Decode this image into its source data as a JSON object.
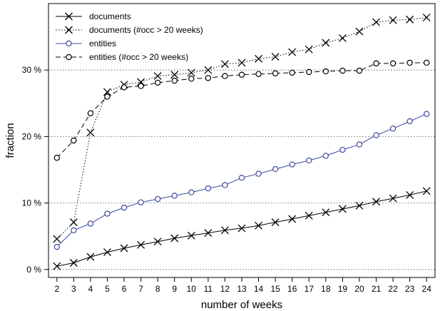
{
  "chart_data": {
    "type": "line",
    "xlabel": "number of weeks",
    "ylabel": "fraction",
    "x": [
      2,
      3,
      4,
      5,
      6,
      7,
      8,
      9,
      10,
      11,
      12,
      13,
      14,
      15,
      16,
      17,
      18,
      19,
      20,
      21,
      22,
      23,
      24
    ],
    "xlim": [
      1.5,
      24.5
    ],
    "ylim": [
      -1.2,
      40
    ],
    "yticks": [
      0,
      10,
      20,
      30
    ],
    "yticklabels": [
      "0 %",
      "10 %",
      "20 %",
      "30 %"
    ],
    "grid": "horizontal dotted at y ticks",
    "legend_position": "top-left",
    "series": [
      {
        "name": "documents",
        "marker": "x",
        "line": "solid",
        "color": "#000000",
        "values": [
          0.5,
          1.0,
          1.9,
          2.6,
          3.2,
          3.7,
          4.2,
          4.7,
          5.1,
          5.5,
          5.9,
          6.2,
          6.6,
          7.1,
          7.6,
          8.1,
          8.6,
          9.1,
          9.6,
          10.2,
          10.7,
          11.2,
          11.8
        ]
      },
      {
        "name": "documents (#occ > 20 weeks)",
        "marker": "x",
        "line": "dotted",
        "color": "#000000",
        "values": [
          4.6,
          7.1,
          20.6,
          26.7,
          27.8,
          28.2,
          29.1,
          29.3,
          29.6,
          30.0,
          30.9,
          31.1,
          31.7,
          32.0,
          32.7,
          33.1,
          34.1,
          34.8,
          35.8,
          37.2,
          37.5,
          37.6,
          37.9
        ]
      },
      {
        "name": "entities",
        "marker": "o",
        "line": "solid",
        "color": "#3b4a9c",
        "values": [
          3.4,
          5.9,
          6.9,
          8.4,
          9.3,
          10.1,
          10.6,
          11.1,
          11.6,
          12.2,
          12.7,
          13.8,
          14.4,
          15.1,
          15.8,
          16.4,
          17.1,
          18.0,
          18.8,
          20.2,
          21.2,
          22.3,
          23.4
        ]
      },
      {
        "name": "entities (#occ > 20 weeks)",
        "marker": "o",
        "line": "dashed",
        "color": "#000000",
        "values": [
          16.8,
          19.4,
          23.5,
          26.0,
          27.4,
          27.6,
          28.1,
          28.4,
          28.7,
          28.8,
          29.1,
          29.3,
          29.4,
          29.5,
          29.6,
          29.7,
          29.8,
          29.9,
          29.9,
          31.0,
          31.0,
          31.1,
          31.1
        ]
      }
    ]
  }
}
